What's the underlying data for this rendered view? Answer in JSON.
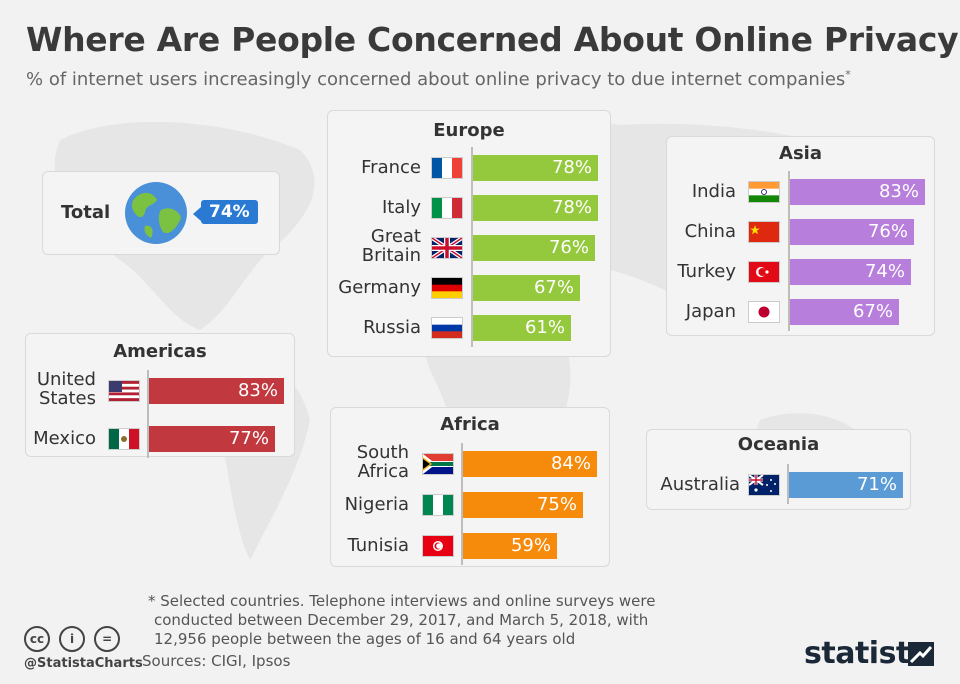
{
  "title": "Where Are People Concerned About Online Privacy?",
  "subtitle": "% of internet users increasingly concerned about online privacy to due internet companies",
  "subtitle_mark": "*",
  "total": {
    "label": "Total",
    "value": "74%",
    "icon": "globe-icon"
  },
  "chart_data": [
    {
      "type": "bar",
      "title": "Europe",
      "color": "#95c93d",
      "categories": [
        "France",
        "Italy",
        "Great Britain",
        "Germany",
        "Russia"
      ],
      "labels": [
        [
          "France"
        ],
        [
          "Italy"
        ],
        [
          "Great",
          "Britain"
        ],
        [
          "Germany"
        ],
        [
          "Russia"
        ]
      ],
      "values": [
        78,
        78,
        76,
        67,
        61
      ],
      "flags": [
        "fr",
        "it",
        "gb",
        "de",
        "ru"
      ]
    },
    {
      "type": "bar",
      "title": "Asia",
      "color": "#b77fdb",
      "categories": [
        "India",
        "China",
        "Turkey",
        "Japan"
      ],
      "labels": [
        [
          "India"
        ],
        [
          "China"
        ],
        [
          "Turkey"
        ],
        [
          "Japan"
        ]
      ],
      "values": [
        83,
        76,
        74,
        67
      ],
      "flags": [
        "in",
        "cn",
        "tr",
        "jp"
      ]
    },
    {
      "type": "bar",
      "title": "Americas",
      "color": "#c1383f",
      "categories": [
        "United States",
        "Mexico"
      ],
      "labels": [
        [
          "United",
          "States"
        ],
        [
          "Mexico"
        ]
      ],
      "values": [
        83,
        77
      ],
      "flags": [
        "us",
        "mx"
      ]
    },
    {
      "type": "bar",
      "title": "Africa",
      "color": "#f58a0b",
      "categories": [
        "South Africa",
        "Nigeria",
        "Tunisia"
      ],
      "labels": [
        [
          "South",
          "Africa"
        ],
        [
          "Nigeria"
        ],
        [
          "Tunisia"
        ]
      ],
      "values": [
        84,
        75,
        59
      ],
      "flags": [
        "za",
        "ng",
        "tn"
      ]
    },
    {
      "type": "bar",
      "title": "Oceania",
      "color": "#5b9bd5",
      "categories": [
        "Australia"
      ],
      "labels": [
        [
          "Australia"
        ]
      ],
      "values": [
        71
      ],
      "flags": [
        "au"
      ]
    }
  ],
  "value_suffix": "%",
  "footnote": [
    "* Selected countries. Telephone interviews and online surveys were",
    "conducted between December 29, 2017, and March 5, 2018, with",
    "12,956 people between the ages of 16 and 64 years old"
  ],
  "sources": "Sources: CIGI, Ipsos",
  "license_icons": [
    "cc",
    "i",
    "="
  ],
  "handle": "@StatistaCharts",
  "brand": "statista"
}
